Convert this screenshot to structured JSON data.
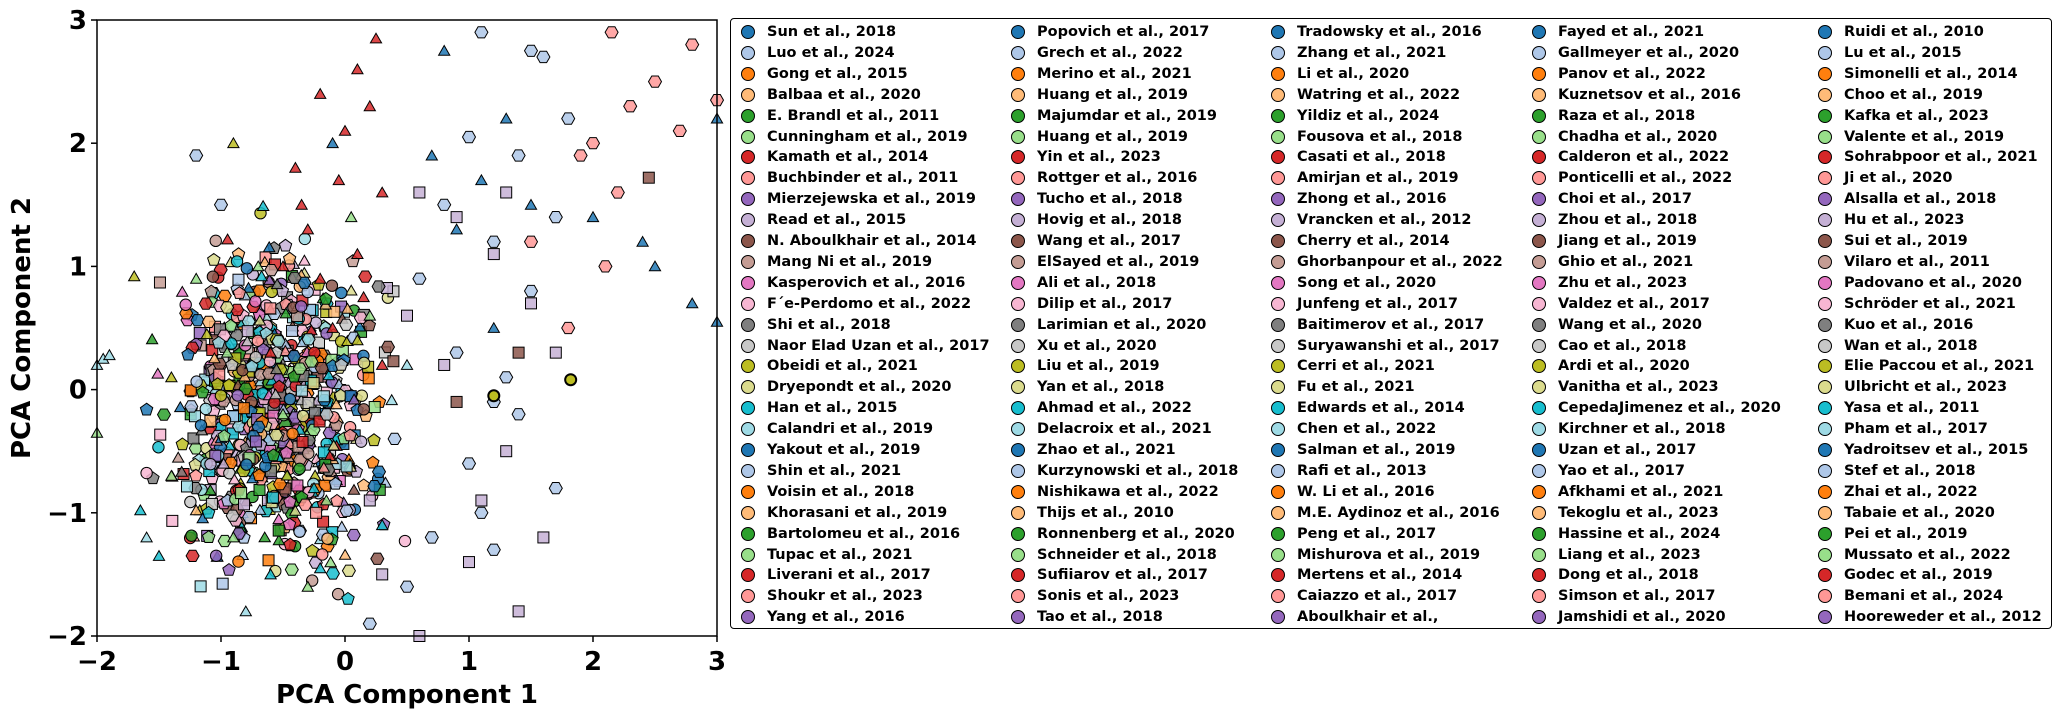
{
  "chart_data": {
    "type": "scatter",
    "title": "",
    "xlabel": "PCA Component 1",
    "ylabel": "PCA Component 2",
    "xlim": [
      -2,
      3
    ],
    "ylim": [
      -2,
      3
    ],
    "xticks": [
      "−2",
      "−1",
      "0",
      "1",
      "2",
      "3"
    ],
    "yticks": [
      "−2",
      "−1",
      "0",
      "1",
      "2",
      "3"
    ],
    "grid": false,
    "legend_position": "right",
    "marker_shapes": [
      "circle",
      "square",
      "triangle",
      "pentagon",
      "hexagon"
    ],
    "palette": [
      "#1f77b4",
      "#aec7e8",
      "#ff7f0e",
      "#ffbb78",
      "#2ca02c",
      "#98df8a",
      "#d62728",
      "#ff9896",
      "#9467bd",
      "#c5b0d5",
      "#8c564b",
      "#c49c94",
      "#e377c2",
      "#f7b6d2",
      "#7f7f7f",
      "#c7c7c7",
      "#bcbd22",
      "#dbdb8d",
      "#17becf",
      "#9edae5"
    ],
    "legend_columns": [
      [
        "Sun et al., 2018",
        "Luo et al., 2024",
        "Gong et al., 2015",
        "Balbaa  et al., 2020",
        "E. Brandl et al., 2011",
        "Cunningham et al., 2019",
        "Kamath et al., 2014",
        "Buchbinder et al., 2011",
        "Mierzejewska et al., 2019",
        "Read et al., 2015",
        "N. Aboulkhair et al., 2014",
        "Mang Ni et al., 2019",
        "Kasperovich et al., 2016",
        "F´e-Perdomo et al., 2022",
        "Shi et al., 2018",
        "Naor Elad Uzan et al., 2017",
        "Obeidi et al., 2021",
        "Dryepondt et al., 2020",
        "Han et al., 2015",
        "Calandri  et al., 2019",
        "Yakout et al., 2019",
        "Shin et al., 2021",
        "Voisin et al., 2018",
        "Khorasani et al., 2019",
        "Bartolomeu et al., 2016",
        "Tupac et al., 2021",
        "Liverani et al., 2017",
        "Shoukr et al., 2023",
        "Yang et al., 2016"
      ],
      [
        "Popovich et al., 2017",
        "Grech et al., 2022",
        "Merino et al., 2021",
        "Huang  et al., 2019",
        "Majumdar et al., 2019",
        "Huang et al., 2019",
        "Yin et al., 2023",
        "Rottger et al., 2016",
        "Tucho et al., 2018",
        "Hovig et al., 2018",
        "Wang et al., 2017",
        "ElSayed et al., 2019",
        "Ali et al., 2018",
        "Dilip et al., 2017",
        "Larimian et al., 2020",
        "Xu et al., 2020",
        "Liu et al., 2019",
        "Yan et al., 2018",
        "Ahmad et al., 2022",
        "Delacroix  et al., 2021",
        "Zhao et al., 2021",
        "Kurzynowski et al., 2018",
        "Nishikawa et al., 2022",
        "Thijs et al., 2010",
        "Ronnenberg et al., 2020",
        "Schneider et al., 2018",
        "Sufiiarov et al., 2017",
        "Sonis et al., 2023",
        "Tao et al., 2018"
      ],
      [
        "Tradowsky et al., 2016",
        "Zhang et al., 2021",
        "Li et al., 2020",
        "Watring et al., 2022",
        "Yildiz et al., 2024",
        "Fousova et al., 2018",
        "Casati et al., 2018",
        "Amirjan et al., 2019",
        "Zhong et al., 2016",
        "Vrancken et al., 2012",
        "Cherry et al., 2014",
        "Ghorbanpour et al., 2022",
        "Song et al., 2020",
        "Junfeng et al., 2017",
        "Baitimerov et al., 2017",
        "Suryawanshi et al., 2017",
        "Cerri et al., 2021",
        "Fu et al., 2021",
        "Edwards et al., 2014",
        "Chen et al., 2022",
        "Salman et al., 2019",
        "Rafi et al., 2013",
        "W. Li et al., 2016",
        "M.E. Aydinoz et al., 2016",
        "Peng et al., 2017",
        "Mishurova et al., 2019",
        "Mertens et al., 2014",
        "Caiazzo et al., 2017",
        "Aboulkhair et al.,"
      ],
      [
        "Fayed et al., 2021",
        "Gallmeyer et al., 2020",
        "Panov et al., 2022",
        "Kuznetsov et al., 2016",
        "Raza  et al., 2018",
        "Chadha et al., 2020",
        "Calderon et al., 2022",
        "Ponticelli et al., 2022",
        "Choi et al., 2017",
        "Zhou et al., 2018",
        "Jiang  et al., 2019",
        "Ghio et al., 2021",
        "Zhu et al., 2023",
        "Valdez et al., 2017",
        "Wang  et al., 2020",
        "Cao et al., 2018",
        "Ardi et al., 2020",
        "Vanitha et al., 2023",
        "CepedaJimenez et al., 2020",
        "Kirchner et al., 2018",
        "Uzan et al., 2017",
        "Yao et al., 2017",
        "Afkhami et al., 2021",
        "Tekoglu et al., 2023",
        "Hassine et al., 2024",
        "Liang et al., 2023",
        "Dong et al., 2018",
        "Simson et al., 2017",
        "Jamshidi et al., 2020"
      ],
      [
        "Ruidi et al., 2010",
        "Lu et al., 2015",
        "Simonelli et al., 2014",
        "Choo et al., 2019",
        "Kafka et al., 2023",
        "Valente et al., 2019",
        "Sohrabpoor et al., 2021",
        "Ji et al., 2020",
        "Alsalla et al., 2018",
        "Hu et al., 2023",
        "Sui et al., 2019",
        "Vilaro et al., 2011",
        "Padovano et al., 2020",
        "Schröder et al., 2021",
        "Kuo et al., 2016",
        "Wan  et al., 2018",
        "Elie Paccou et al., 2021",
        "Ulbricht et al., 2023",
        "Yasa et al., 2011",
        "Pham et al., 2017",
        "Yadroitsev et al., 2015",
        "Stef et al., 2018",
        "Zhai et al., 2022",
        "Tabaie  et al., 2020",
        "Pei et al., 2019",
        "Mussato et al., 2022",
        "Godec et al., 2019",
        "Bemani et al., 2024",
        "Hooreweder et al., 2012"
      ]
    ],
    "series_groups": [
      {
        "color": "#1f77b4",
        "marker": "triangle",
        "points": [
          [
            0.8,
            2.75
          ],
          [
            1.3,
            2.2
          ],
          [
            1.5,
            1.5
          ],
          [
            2.0,
            1.4
          ],
          [
            2.4,
            1.2
          ],
          [
            2.5,
            1.0
          ],
          [
            2.8,
            0.7
          ],
          [
            3.0,
            0.55
          ],
          [
            0.7,
            1.9
          ],
          [
            1.1,
            1.7
          ],
          [
            -0.1,
            2.0
          ],
          [
            0.9,
            1.3
          ],
          [
            1.2,
            0.5
          ],
          [
            3.0,
            2.2
          ]
        ]
      },
      {
        "color": "#d62728",
        "marker": "triangle",
        "points": [
          [
            0.25,
            2.85
          ],
          [
            0.1,
            2.6
          ],
          [
            -0.2,
            2.4
          ],
          [
            0.0,
            2.1
          ],
          [
            -0.4,
            1.8
          ],
          [
            0.3,
            1.6
          ],
          [
            -0.3,
            1.3
          ],
          [
            0.1,
            1.1
          ],
          [
            -0.5,
            1.0
          ],
          [
            -0.2,
            0.9
          ],
          [
            0.15,
            0.75
          ],
          [
            -0.1,
            0.5
          ],
          [
            -0.6,
            0.3
          ],
          [
            0.3,
            0.2
          ],
          [
            -0.35,
            1.5
          ],
          [
            0.2,
            2.3
          ],
          [
            -0.05,
            1.7
          ]
        ]
      },
      {
        "color": "#aec7e8",
        "marker": "hexagon",
        "points": [
          [
            1.1,
            2.9
          ],
          [
            1.5,
            2.75
          ],
          [
            1.6,
            2.7
          ],
          [
            1.0,
            2.05
          ],
          [
            1.4,
            1.9
          ],
          [
            0.8,
            1.5
          ],
          [
            1.7,
            1.4
          ],
          [
            1.2,
            1.2
          ],
          [
            0.6,
            0.9
          ],
          [
            1.5,
            0.8
          ],
          [
            0.9,
            0.3
          ],
          [
            1.3,
            0.1
          ],
          [
            0.4,
            -0.4
          ],
          [
            1.0,
            -0.6
          ],
          [
            1.4,
            -0.2
          ],
          [
            0.7,
            -1.2
          ],
          [
            1.2,
            -1.3
          ],
          [
            0.5,
            -1.6
          ],
          [
            1.1,
            -1.0
          ],
          [
            0.2,
            -1.9
          ],
          [
            1.7,
            -0.8
          ],
          [
            -1.2,
            1.9
          ],
          [
            -1.0,
            1.5
          ],
          [
            1.8,
            2.2
          ],
          [
            1.2,
            -0.1
          ]
        ]
      },
      {
        "color": "#ff9896",
        "marker": "hexagon",
        "points": [
          [
            2.15,
            2.9
          ],
          [
            2.5,
            2.5
          ],
          [
            2.8,
            2.8
          ],
          [
            2.3,
            2.3
          ],
          [
            2.7,
            2.1
          ],
          [
            1.9,
            1.9
          ],
          [
            2.2,
            1.6
          ],
          [
            2.0,
            2.0
          ],
          [
            3.0,
            2.35
          ],
          [
            1.5,
            1.2
          ],
          [
            1.8,
            0.5
          ],
          [
            2.1,
            1.0
          ]
        ]
      },
      {
        "color": "#c5b0d5",
        "marker": "square",
        "points": [
          [
            0.6,
            1.6
          ],
          [
            0.9,
            1.4
          ],
          [
            1.2,
            1.1
          ],
          [
            1.5,
            0.7
          ],
          [
            0.8,
            0.2
          ],
          [
            1.3,
            -0.5
          ],
          [
            1.6,
            -1.2
          ],
          [
            1.0,
            -1.4
          ],
          [
            1.4,
            -1.8
          ],
          [
            0.6,
            -2.0
          ],
          [
            0.3,
            -1.5
          ],
          [
            1.7,
            0.3
          ],
          [
            0.5,
            0.6
          ],
          [
            1.1,
            -0.9
          ],
          [
            0.2,
            -0.9
          ],
          [
            1.3,
            1.6
          ]
        ]
      },
      {
        "color": "#8c564b",
        "marker": "square",
        "points": [
          [
            2.45,
            1.72
          ],
          [
            1.4,
            0.3
          ],
          [
            0.9,
            -0.1
          ]
        ]
      },
      {
        "color": "#bcbd22",
        "marker": "triangle",
        "points": [
          [
            -1.7,
            0.92
          ],
          [
            -0.9,
            2.0
          ],
          [
            -1.4,
            0.1
          ],
          [
            0.1,
            0.4
          ]
        ]
      },
      {
        "color": "#98df8a",
        "marker": "triangle",
        "points": [
          [
            -2.0,
            -0.35
          ],
          [
            -1.4,
            -0.7
          ],
          [
            -0.9,
            -1.2
          ],
          [
            -0.3,
            -1.6
          ],
          [
            -0.5,
            -0.2
          ],
          [
            -0.7,
            1.0
          ],
          [
            0.05,
            1.4
          ],
          [
            -0.95,
            0.3
          ],
          [
            -0.15,
            -0.9
          ],
          [
            -1.2,
            0.9
          ],
          [
            0.2,
            0.6
          ]
        ]
      },
      {
        "color": "#9edae5",
        "marker": "triangle",
        "points": [
          [
            -2.0,
            0.2
          ],
          [
            -1.95,
            0.25
          ],
          [
            -1.9,
            0.28
          ],
          [
            -1.6,
            -1.2
          ],
          [
            -0.8,
            -1.8
          ],
          [
            0.5,
            0.2
          ]
        ]
      },
      {
        "color": "#17becf",
        "marker": "triangle",
        "points": [
          [
            -1.65,
            -0.98
          ],
          [
            -1.5,
            -1.35
          ],
          [
            -0.2,
            -1.45
          ],
          [
            0.3,
            -1.1
          ],
          [
            -0.6,
            -1.5
          ],
          [
            -0.25,
            -0.8
          ]
        ]
      }
    ],
    "dense_cluster": {
      "x_range": [
        -1.6,
        0.7
      ],
      "y_range": [
        -1.85,
        1.6
      ],
      "marker_mix": [
        "circle",
        "square",
        "triangle",
        "pentagon",
        "hexagon"
      ],
      "description_count": 900
    },
    "highlight_points": [
      [
        1.82,
        0.08
      ],
      [
        1.2,
        -0.05
      ]
    ]
  }
}
